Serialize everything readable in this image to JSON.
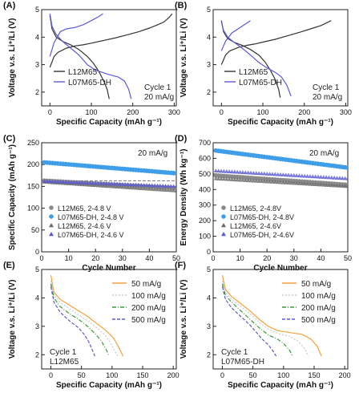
{
  "figure": {
    "background": "#ffffff",
    "colors": {
      "black": "#333333",
      "gray": "#7a7a7a",
      "blue": "#5a5ad6",
      "light_blue": "#3f9ee8",
      "orange": "#f3a03c",
      "lightgray": "#c9c9c9",
      "green": "#3a9a3a"
    }
  },
  "chart_data": [
    {
      "id": "A",
      "panel_label": "(A)",
      "type": "line",
      "xlabel": "Specific Capacity (mAh g⁻¹)",
      "ylabel": "Voltage v.s. Li⁺/Li (V)",
      "xlim": [
        -20,
        305
      ],
      "ylim": [
        1.5,
        5.0
      ],
      "xticks": [
        0,
        100,
        200,
        300
      ],
      "yticks": [
        2,
        3,
        4,
        5
      ],
      "annotations": [
        "Cycle 1",
        "20 mA/g"
      ],
      "series": [
        {
          "name": "L12M65",
          "color": "#333333",
          "segments": [
            [
              [
                0,
                2.9
              ],
              [
                10,
                3.3
              ],
              [
                20,
                3.45
              ],
              [
                40,
                3.6
              ],
              [
                60,
                3.68
              ],
              [
                80,
                3.72
              ],
              [
                100,
                3.78
              ],
              [
                130,
                3.88
              ],
              [
                160,
                3.98
              ],
              [
                190,
                4.1
              ],
              [
                215,
                4.2
              ],
              [
                240,
                4.33
              ],
              [
                260,
                4.45
              ],
              [
                275,
                4.55
              ],
              [
                288,
                4.72
              ],
              [
                295,
                4.85
              ]
            ],
            [
              [
                0,
                4.8
              ],
              [
                5,
                4.3
              ],
              [
                15,
                4.0
              ],
              [
                30,
                3.85
              ],
              [
                50,
                3.72
              ],
              [
                70,
                3.55
              ],
              [
                90,
                3.3
              ],
              [
                105,
                3.05
              ],
              [
                118,
                2.75
              ],
              [
                130,
                2.4
              ],
              [
                138,
                2.1
              ],
              [
                143,
                1.75
              ]
            ]
          ]
        },
        {
          "name": "L07M65-DH",
          "color": "#5a5ad6",
          "segments": [
            [
              [
                0,
                3.3
              ],
              [
                10,
                3.8
              ],
              [
                25,
                4.2
              ],
              [
                40,
                4.3
              ],
              [
                60,
                4.35
              ],
              [
                80,
                4.45
              ],
              [
                100,
                4.6
              ],
              [
                118,
                4.75
              ],
              [
                128,
                4.85
              ]
            ],
            [
              [
                0,
                4.85
              ],
              [
                5,
                4.4
              ],
              [
                15,
                4.1
              ],
              [
                30,
                3.85
              ],
              [
                50,
                3.6
              ],
              [
                70,
                3.35
              ],
              [
                90,
                3.0
              ],
              [
                110,
                2.8
              ],
              [
                140,
                2.65
              ],
              [
                165,
                2.55
              ],
              [
                180,
                2.4
              ],
              [
                190,
                2.1
              ],
              [
                196,
                1.75
              ]
            ]
          ]
        }
      ]
    },
    {
      "id": "B",
      "panel_label": "(B)",
      "type": "line",
      "xlabel": "Specific Capacity (mAh g⁻¹)",
      "ylabel": "Voltage v.s. Li⁺/Li (V)",
      "xlim": [
        -20,
        305
      ],
      "ylim": [
        1.5,
        5.0
      ],
      "xticks": [
        0,
        100,
        200,
        300
      ],
      "yticks": [
        2,
        3,
        4,
        5
      ],
      "annotations": [
        "Cycle 1",
        "20 mA/g"
      ],
      "series": [
        {
          "name": "L12M65",
          "color": "#333333",
          "segments": [
            [
              [
                0,
                3.0
              ],
              [
                10,
                3.35
              ],
              [
                20,
                3.5
              ],
              [
                40,
                3.62
              ],
              [
                60,
                3.7
              ],
              [
                80,
                3.75
              ],
              [
                100,
                3.82
              ],
              [
                130,
                3.92
              ],
              [
                160,
                4.05
              ],
              [
                190,
                4.18
              ],
              [
                215,
                4.3
              ],
              [
                240,
                4.42
              ],
              [
                265,
                4.6
              ]
            ],
            [
              [
                0,
                4.6
              ],
              [
                5,
                4.2
              ],
              [
                15,
                3.95
              ],
              [
                30,
                3.82
              ],
              [
                50,
                3.7
              ],
              [
                70,
                3.55
              ],
              [
                90,
                3.35
              ],
              [
                105,
                3.1
              ],
              [
                118,
                2.8
              ],
              [
                130,
                2.45
              ],
              [
                138,
                2.1
              ],
              [
                142,
                1.8
              ]
            ]
          ]
        },
        {
          "name": "L07M65-DH",
          "color": "#5a5ad6",
          "segments": [
            [
              [
                0,
                3.5
              ],
              [
                10,
                3.85
              ],
              [
                25,
                4.15
              ],
              [
                40,
                4.3
              ],
              [
                55,
                4.45
              ],
              [
                70,
                4.6
              ]
            ],
            [
              [
                0,
                4.55
              ],
              [
                5,
                4.25
              ],
              [
                15,
                4.0
              ],
              [
                30,
                3.82
              ],
              [
                50,
                3.6
              ],
              [
                70,
                3.35
              ],
              [
                90,
                3.08
              ],
              [
                110,
                2.88
              ],
              [
                130,
                2.72
              ],
              [
                145,
                2.55
              ],
              [
                158,
                2.25
              ],
              [
                168,
                1.85
              ]
            ]
          ]
        }
      ]
    },
    {
      "id": "C",
      "panel_label": "(C)",
      "type": "scatter",
      "xlabel": "Cycle Number",
      "ylabel": "Specific Capacity (mAh g⁻¹)",
      "xlim": [
        0,
        50
      ],
      "ylim": [
        0,
        250
      ],
      "xticks": [
        0,
        10,
        20,
        30,
        40,
        50
      ],
      "yticks": [
        0,
        50,
        100,
        150,
        200,
        250
      ],
      "annotations": [
        "20 mA/g"
      ],
      "series": [
        {
          "name": "L12M65, 2-4.8 V",
          "marker": "circle",
          "color": "#8a8a8a",
          "start": 163,
          "end": 146
        },
        {
          "name": "L07M65-DH, 2-4.8 V",
          "marker": "circle",
          "color": "#3f9ee8",
          "start": 205,
          "end": 180
        },
        {
          "name": "L12M65, 2-4.6 V",
          "marker": "triangle",
          "color": "#6a6a6a",
          "start": 160,
          "end": 140
        },
        {
          "name": "L07M65-DH, 2-4.6 V",
          "marker": "triangle",
          "color": "#5a5ad6",
          "start": 162,
          "end": 150
        }
      ]
    },
    {
      "id": "D",
      "panel_label": "(D)",
      "type": "scatter",
      "xlabel": "Cycle Number",
      "ylabel": "Energy Density (Wh kg⁻¹)",
      "xlim": [
        0,
        50
      ],
      "ylim": [
        0,
        700
      ],
      "xticks": [
        0,
        10,
        20,
        30,
        40,
        50
      ],
      "yticks": [
        0,
        100,
        200,
        300,
        400,
        500,
        600,
        700
      ],
      "annotations": [
        "20 mA/g"
      ],
      "series": [
        {
          "name": "L12M65, 2-4.8V",
          "marker": "circle",
          "color": "#8a8a8a",
          "start": 490,
          "end": 430
        },
        {
          "name": "L07M65-DH, 2-4.8V",
          "marker": "circle",
          "color": "#3f9ee8",
          "start": 650,
          "end": 540
        },
        {
          "name": "L12M65, 2-4.6V",
          "marker": "triangle",
          "color": "#6a6a6a",
          "start": 470,
          "end": 420
        },
        {
          "name": "L07M65-DH, 2-4.6V",
          "marker": "triangle",
          "color": "#5a5ad6",
          "start": 520,
          "end": 470
        }
      ]
    },
    {
      "id": "E",
      "panel_label": "(E)",
      "type": "line",
      "xlabel": "Specific Capacity (mAh g⁻¹)",
      "ylabel": "Voltage v.s. Li⁺/Li (V)",
      "xlim": [
        -15,
        205
      ],
      "ylim": [
        1.5,
        5.0
      ],
      "xticks": [
        0,
        50,
        100,
        150,
        200
      ],
      "yticks": [
        2,
        3,
        4,
        5
      ],
      "annotations": [
        "Cycle 1",
        "L12M65"
      ],
      "series": [
        {
          "name": "50 mA/g",
          "color": "#f3a03c",
          "dash": "",
          "points": [
            [
              0,
              4.8
            ],
            [
              5,
              4.2
            ],
            [
              15,
              3.95
            ],
            [
              30,
              3.75
            ],
            [
              45,
              3.55
            ],
            [
              60,
              3.35
            ],
            [
              75,
              3.1
            ],
            [
              90,
              2.85
            ],
            [
              102,
              2.6
            ],
            [
              110,
              2.3
            ],
            [
              118,
              1.95
            ]
          ]
        },
        {
          "name": "100 mA/g",
          "color": "#c9c9c9",
          "dash": "2,2",
          "points": [
            [
              0,
              4.6
            ],
            [
              5,
              4.1
            ],
            [
              15,
              3.85
            ],
            [
              30,
              3.62
            ],
            [
              45,
              3.4
            ],
            [
              60,
              3.2
            ],
            [
              75,
              2.95
            ],
            [
              88,
              2.7
            ],
            [
              98,
              2.4
            ],
            [
              105,
              2.1
            ],
            [
              110,
              1.95
            ]
          ]
        },
        {
          "name": "200 mA/g",
          "color": "#3a9a3a",
          "dash": "5,2,1,2",
          "points": [
            [
              0,
              4.5
            ],
            [
              5,
              4.0
            ],
            [
              15,
              3.7
            ],
            [
              30,
              3.45
            ],
            [
              45,
              3.25
            ],
            [
              60,
              3.0
            ],
            [
              72,
              2.75
            ],
            [
              82,
              2.5
            ],
            [
              90,
              2.2
            ],
            [
              95,
              1.95
            ]
          ]
        },
        {
          "name": "500 mA/g",
          "color": "#5a5ad6",
          "dash": "4,2",
          "points": [
            [
              0,
              4.4
            ],
            [
              5,
              3.85
            ],
            [
              15,
              3.5
            ],
            [
              30,
              3.2
            ],
            [
              45,
              2.95
            ],
            [
              55,
              2.7
            ],
            [
              62,
              2.45
            ],
            [
              68,
              2.15
            ],
            [
              72,
              1.95
            ]
          ]
        }
      ]
    },
    {
      "id": "F",
      "panel_label": "(F)",
      "type": "line",
      "xlabel": "Specific Capacity (mAh g⁻¹)",
      "ylabel": "Voltage v.s. Li⁺/Li (V)",
      "xlim": [
        -15,
        205
      ],
      "ylim": [
        1.5,
        5.0
      ],
      "xticks": [
        0,
        50,
        100,
        150,
        200
      ],
      "yticks": [
        2,
        3,
        4,
        5
      ],
      "annotations": [
        "Cycle 1",
        "L07M65-DH"
      ],
      "series": [
        {
          "name": "50 mA/g",
          "color": "#f3a03c",
          "dash": "",
          "points": [
            [
              0,
              4.8
            ],
            [
              5,
              4.3
            ],
            [
              15,
              4.05
            ],
            [
              30,
              3.8
            ],
            [
              45,
              3.55
            ],
            [
              60,
              3.25
            ],
            [
              75,
              3.0
            ],
            [
              90,
              2.85
            ],
            [
              110,
              2.78
            ],
            [
              130,
              2.72
            ],
            [
              145,
              2.55
            ],
            [
              155,
              2.3
            ],
            [
              162,
              1.95
            ]
          ]
        },
        {
          "name": "100 mA/g",
          "color": "#c9c9c9",
          "dash": "2,2",
          "points": [
            [
              0,
              4.6
            ],
            [
              5,
              4.2
            ],
            [
              15,
              3.95
            ],
            [
              30,
              3.7
            ],
            [
              45,
              3.45
            ],
            [
              60,
              3.15
            ],
            [
              75,
              2.9
            ],
            [
              90,
              2.75
            ],
            [
              110,
              2.65
            ],
            [
              125,
              2.45
            ],
            [
              135,
              2.2
            ],
            [
              140,
              1.95
            ]
          ]
        },
        {
          "name": "200 mA/g",
          "color": "#3a9a3a",
          "dash": "5,2,1,2",
          "points": [
            [
              0,
              4.5
            ],
            [
              5,
              4.1
            ],
            [
              15,
              3.85
            ],
            [
              30,
              3.55
            ],
            [
              45,
              3.25
            ],
            [
              60,
              2.95
            ],
            [
              75,
              2.7
            ],
            [
              90,
              2.55
            ],
            [
              100,
              2.4
            ],
            [
              110,
              2.15
            ],
            [
              115,
              1.95
            ]
          ]
        },
        {
          "name": "500 mA/g",
          "color": "#5a5ad6",
          "dash": "4,2",
          "points": [
            [
              0,
              4.4
            ],
            [
              5,
              3.95
            ],
            [
              15,
              3.65
            ],
            [
              30,
              3.35
            ],
            [
              45,
              3.05
            ],
            [
              55,
              2.8
            ],
            [
              65,
              2.55
            ],
            [
              75,
              2.35
            ],
            [
              82,
              2.15
            ],
            [
              88,
              1.95
            ]
          ]
        }
      ]
    }
  ]
}
